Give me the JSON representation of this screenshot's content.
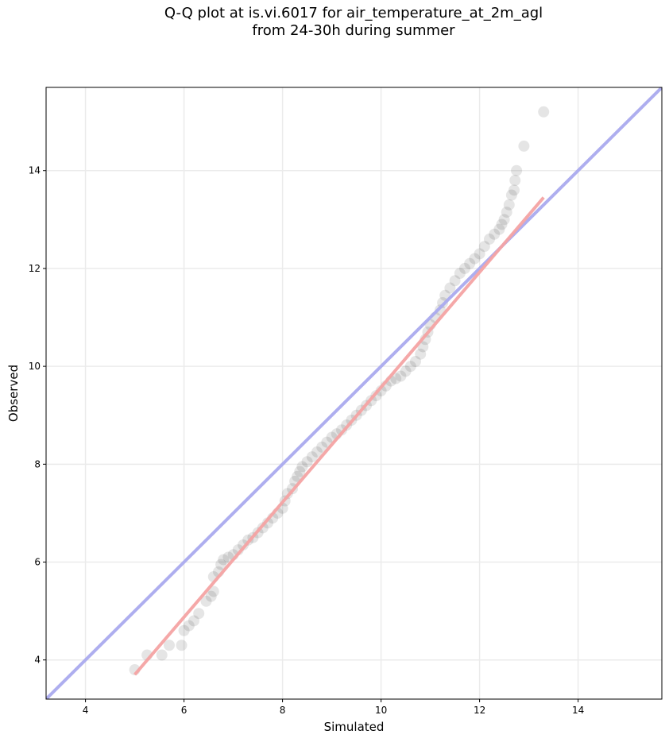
{
  "chart_data": {
    "type": "scatter",
    "title_line1": "Q-Q plot at is.vi.6017 for air_temperature_at_2m_agl",
    "title_line2": "from 24-30h during summer",
    "xlabel": "Simulated",
    "ylabel": "Observed",
    "xlim": [
      3.2,
      15.7
    ],
    "ylim": [
      3.2,
      15.7
    ],
    "xticks": [
      4,
      6,
      8,
      10,
      12,
      14
    ],
    "yticks": [
      4,
      6,
      8,
      10,
      12,
      14
    ],
    "grid": true,
    "point_color": "#000000",
    "identity_line": {
      "color": "#aaaaee",
      "from": [
        3.2,
        3.2
      ],
      "to": [
        15.7,
        15.7
      ]
    },
    "fit_line": {
      "color": "#f4a3a3",
      "from": [
        5.0,
        3.7
      ],
      "to": [
        13.3,
        13.45
      ]
    },
    "points": [
      [
        5.0,
        3.8
      ],
      [
        5.25,
        4.1
      ],
      [
        5.55,
        4.1
      ],
      [
        5.7,
        4.3
      ],
      [
        5.95,
        4.3
      ],
      [
        6.0,
        4.6
      ],
      [
        6.1,
        4.7
      ],
      [
        6.2,
        4.8
      ],
      [
        6.3,
        4.95
      ],
      [
        6.45,
        5.2
      ],
      [
        6.55,
        5.3
      ],
      [
        6.6,
        5.4
      ],
      [
        6.6,
        5.7
      ],
      [
        6.7,
        5.8
      ],
      [
        6.75,
        5.95
      ],
      [
        6.8,
        6.05
      ],
      [
        6.9,
        6.1
      ],
      [
        7.0,
        6.15
      ],
      [
        7.1,
        6.25
      ],
      [
        7.2,
        6.35
      ],
      [
        7.3,
        6.45
      ],
      [
        7.4,
        6.5
      ],
      [
        7.5,
        6.6
      ],
      [
        7.6,
        6.7
      ],
      [
        7.7,
        6.8
      ],
      [
        7.8,
        6.9
      ],
      [
        7.9,
        7.0
      ],
      [
        8.0,
        7.1
      ],
      [
        8.05,
        7.25
      ],
      [
        8.1,
        7.4
      ],
      [
        8.2,
        7.5
      ],
      [
        8.25,
        7.65
      ],
      [
        8.3,
        7.75
      ],
      [
        8.35,
        7.85
      ],
      [
        8.4,
        7.95
      ],
      [
        8.5,
        8.05
      ],
      [
        8.6,
        8.15
      ],
      [
        8.7,
        8.25
      ],
      [
        8.8,
        8.35
      ],
      [
        8.9,
        8.45
      ],
      [
        9.0,
        8.55
      ],
      [
        9.1,
        8.62
      ],
      [
        9.2,
        8.7
      ],
      [
        9.3,
        8.8
      ],
      [
        9.4,
        8.9
      ],
      [
        9.5,
        9.0
      ],
      [
        9.6,
        9.1
      ],
      [
        9.7,
        9.2
      ],
      [
        9.8,
        9.3
      ],
      [
        9.9,
        9.4
      ],
      [
        10.0,
        9.5
      ],
      [
        10.1,
        9.6
      ],
      [
        10.2,
        9.7
      ],
      [
        10.3,
        9.75
      ],
      [
        10.4,
        9.8
      ],
      [
        10.5,
        9.9
      ],
      [
        10.6,
        10.0
      ],
      [
        10.7,
        10.1
      ],
      [
        10.8,
        10.25
      ],
      [
        10.85,
        10.4
      ],
      [
        10.9,
        10.55
      ],
      [
        10.95,
        10.7
      ],
      [
        11.0,
        10.85
      ],
      [
        11.1,
        11.0
      ],
      [
        11.2,
        11.15
      ],
      [
        11.25,
        11.3
      ],
      [
        11.3,
        11.45
      ],
      [
        11.4,
        11.6
      ],
      [
        11.5,
        11.75
      ],
      [
        11.6,
        11.9
      ],
      [
        11.7,
        12.0
      ],
      [
        11.8,
        12.1
      ],
      [
        11.9,
        12.2
      ],
      [
        12.0,
        12.3
      ],
      [
        12.1,
        12.45
      ],
      [
        12.2,
        12.6
      ],
      [
        12.3,
        12.7
      ],
      [
        12.4,
        12.8
      ],
      [
        12.45,
        12.9
      ],
      [
        12.5,
        13.0
      ],
      [
        12.55,
        13.15
      ],
      [
        12.6,
        13.3
      ],
      [
        12.65,
        13.5
      ],
      [
        12.7,
        13.6
      ],
      [
        12.72,
        13.8
      ],
      [
        12.75,
        14.0
      ],
      [
        12.9,
        14.5
      ],
      [
        13.3,
        15.2
      ]
    ]
  }
}
